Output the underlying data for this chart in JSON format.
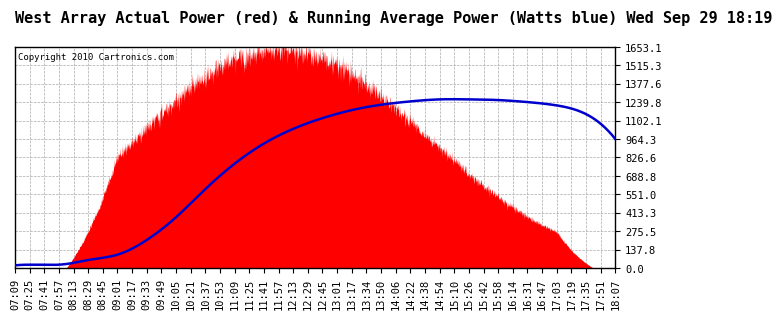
{
  "title": "West Array Actual Power (red) & Running Average Power (Watts blue) Wed Sep 29 18:19",
  "copyright_text": "Copyright 2010 Cartronics.com",
  "ymin": 0.0,
  "ymax": 1653.1,
  "yticks": [
    0.0,
    137.8,
    275.5,
    413.3,
    551.0,
    688.8,
    826.6,
    964.3,
    1102.1,
    1239.8,
    1377.6,
    1515.3,
    1653.1
  ],
  "x_labels": [
    "07:09",
    "07:25",
    "07:41",
    "07:57",
    "08:13",
    "08:29",
    "08:45",
    "09:01",
    "09:17",
    "09:33",
    "09:49",
    "10:05",
    "10:21",
    "10:37",
    "10:53",
    "11:09",
    "11:25",
    "11:41",
    "11:57",
    "12:13",
    "12:29",
    "12:45",
    "13:01",
    "13:17",
    "13:34",
    "13:50",
    "14:06",
    "14:22",
    "14:38",
    "14:54",
    "15:10",
    "15:26",
    "15:42",
    "15:58",
    "16:14",
    "16:31",
    "16:47",
    "17:03",
    "17:19",
    "17:35",
    "17:51",
    "18:07"
  ],
  "background_color": "#ffffff",
  "plot_bg_color": "#ffffff",
  "grid_color": "#aaaaaa",
  "red_color": "#ff0000",
  "blue_color": "#0000cc",
  "title_fontsize": 11,
  "tick_fontsize": 7.5,
  "n_labels": 42
}
